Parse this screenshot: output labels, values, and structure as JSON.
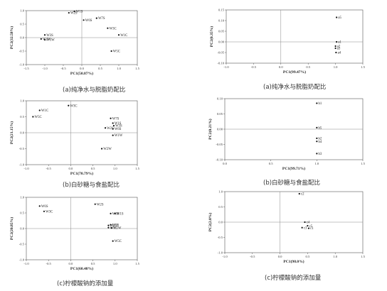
{
  "chart_data": [
    {
      "type": "scatter",
      "xlabel": "PC1(50.87%)",
      "ylabel": "PC2(32.58%)",
      "xlim": [
        -1.5,
        1.5
      ],
      "ylim": [
        -1.0,
        1.0
      ],
      "xticks": [
        "-1.5",
        "-1.0",
        "-0.5",
        "0.0",
        "0.5",
        "1.0",
        "1.5"
      ],
      "yticks": [
        "1.0",
        "0.5",
        "0.0",
        "-0.5",
        "-1.0"
      ],
      "points": [
        {
          "label": "W1S",
          "x": -0.2,
          "y": 0.97
        },
        {
          "label": "W2S",
          "x": -0.35,
          "y": 0.92
        },
        {
          "label": "W6S",
          "x": 0.05,
          "y": 0.65
        },
        {
          "label": "W7S",
          "x": 0.4,
          "y": 0.72
        },
        {
          "label": "W3C",
          "x": 0.7,
          "y": 0.35
        },
        {
          "label": "W3S",
          "x": -1.0,
          "y": 0.1
        },
        {
          "label": "W2W",
          "x": -1.1,
          "y": -0.05
        },
        {
          "label": "W1W",
          "x": -1.0,
          "y": -0.08
        },
        {
          "label": "W1C",
          "x": 1.0,
          "y": 0.1
        },
        {
          "label": "W5C",
          "x": 0.8,
          "y": -0.5
        }
      ],
      "caption": "(a)纯净水与脱脂奶配比"
    },
    {
      "type": "scatter",
      "xlabel": "PC1(99.47%)",
      "ylabel": "PC2(0.35%)",
      "xlim": [
        -1.0,
        1.5
      ],
      "ylim": [
        -0.1,
        0.15
      ],
      "xticks": [
        "-1.0",
        "-0.5",
        "0.0",
        "0.5",
        "1.0",
        "1.5"
      ],
      "yticks": [
        "0.15",
        "0.10",
        "0.05",
        "0.00",
        "-0.05",
        "-0.10"
      ],
      "points": [
        {
          "label": "a5",
          "x": 1.02,
          "y": 0.115
        },
        {
          "label": "a1",
          "x": 1.02,
          "y": 0.0
        },
        {
          "label": "a2",
          "x": 1.0,
          "y": -0.02
        },
        {
          "label": "a3",
          "x": 1.0,
          "y": -0.03
        },
        {
          "label": "a4",
          "x": 1.01,
          "y": -0.05
        }
      ],
      "caption": "(a)纯净水与脱脂奶配比"
    },
    {
      "type": "scatter",
      "xlabel": "PC1(70.79%)",
      "ylabel": "PC2(21.15%)",
      "xlim": [
        -1.0,
        1.5
      ],
      "ylim": [
        -1.0,
        1.0
      ],
      "xticks": [
        "-1.0",
        "-0.5",
        "0.0",
        "0.5",
        "1.0",
        "1.5"
      ],
      "yticks": [
        "1.0",
        "0.5",
        "0.0",
        "-0.5",
        "-1.0"
      ],
      "points": [
        {
          "label": "W3C",
          "x": -0.05,
          "y": 0.85
        },
        {
          "label": "W1C",
          "x": -0.7,
          "y": 0.7
        },
        {
          "label": "W5C",
          "x": -0.85,
          "y": 0.5
        },
        {
          "label": "W7S",
          "x": 0.9,
          "y": 0.45
        },
        {
          "label": "W1S",
          "x": 0.95,
          "y": 0.3
        },
        {
          "label": "W3S",
          "x": 0.97,
          "y": 0.22
        },
        {
          "label": "W2S",
          "x": 0.78,
          "y": 0.15
        },
        {
          "label": "W6S",
          "x": 0.95,
          "y": 0.12
        },
        {
          "label": "W1W",
          "x": 0.95,
          "y": -0.08
        },
        {
          "label": "W2W",
          "x": 0.7,
          "y": -0.5
        }
      ],
      "caption": "(b)白砂糖与食盐配比"
    },
    {
      "type": "scatter",
      "xlabel": "PC1(99.71%)",
      "ylabel": "PC2(0.21%)",
      "xlim": [
        0.0,
        1.5
      ],
      "ylim": [
        -0.1,
        0.1
      ],
      "xticks": [
        "0.0",
        "0.5",
        "1.0",
        "1.5"
      ],
      "yticks": [
        "0.10",
        "0.05",
        "0.00",
        "-0.05",
        "-0.10"
      ],
      "points": [
        {
          "label": "b1",
          "x": 1.0,
          "y": 0.085
        },
        {
          "label": "b5",
          "x": 1.0,
          "y": 0.005
        },
        {
          "label": "b2",
          "x": 1.0,
          "y": -0.03
        },
        {
          "label": "b4",
          "x": 1.0,
          "y": -0.04
        },
        {
          "label": "b3",
          "x": 1.0,
          "y": -0.08
        }
      ],
      "caption": "(b)白砂糖与食盐配比"
    },
    {
      "type": "scatter",
      "xlabel": "PC1(60.48%)",
      "ylabel": "PC2(20.85%)",
      "xlim": [
        -1.0,
        1.5
      ],
      "ylim": [
        -1.0,
        1.0
      ],
      "xticks": [
        "-1.0",
        "-0.5",
        "0.0",
        "0.5",
        "1.0",
        "1.5"
      ],
      "yticks": [
        "1.0",
        "0.5",
        "0.0",
        "-0.5",
        "-1.0"
      ],
      "points": [
        {
          "label": "W6S",
          "x": -0.7,
          "y": 0.72
        },
        {
          "label": "W2S",
          "x": 0.55,
          "y": 0.78
        },
        {
          "label": "W3C",
          "x": -0.6,
          "y": 0.55
        },
        {
          "label": "W1S",
          "x": 1.0,
          "y": 0.48
        },
        {
          "label": "W3S",
          "x": 0.9,
          "y": 0.48
        },
        {
          "label": "W7S",
          "x": 0.9,
          "y": 0.12
        },
        {
          "label": "W2W",
          "x": 0.85,
          "y": 0.1
        },
        {
          "label": "W1C",
          "x": 0.85,
          "y": 0.03
        },
        {
          "label": "W1W",
          "x": 0.92,
          "y": 0.02
        },
        {
          "label": "W5C",
          "x": 0.95,
          "y": -0.4
        }
      ],
      "caption": "(c)柠檬酸钠的添加量"
    },
    {
      "type": "scatter",
      "xlabel": "PC1(98.0%)",
      "ylabel": "PC2(2.0%)",
      "xlim": [
        -1.0,
        1.5
      ],
      "ylim": [
        -1.0,
        1.0
      ],
      "xticks": [
        "-1.0",
        "-0.5",
        "0.0",
        "0.5",
        "1.0",
        "1.5"
      ],
      "yticks": [
        "1.0",
        "0.5",
        "0.0",
        "-0.5",
        "-1.0"
      ],
      "points": [
        {
          "label": "c2",
          "x": 0.35,
          "y": 0.93
        },
        {
          "label": "c4",
          "x": 0.45,
          "y": 0.0
        },
        {
          "label": "c5",
          "x": 0.5,
          "y": -0.12
        },
        {
          "label": "c1",
          "x": 0.52,
          "y": -0.2
        },
        {
          "label": "c3",
          "x": 0.4,
          "y": -0.18
        }
      ],
      "caption": "(c)柠檬酸钠的添加量"
    }
  ]
}
